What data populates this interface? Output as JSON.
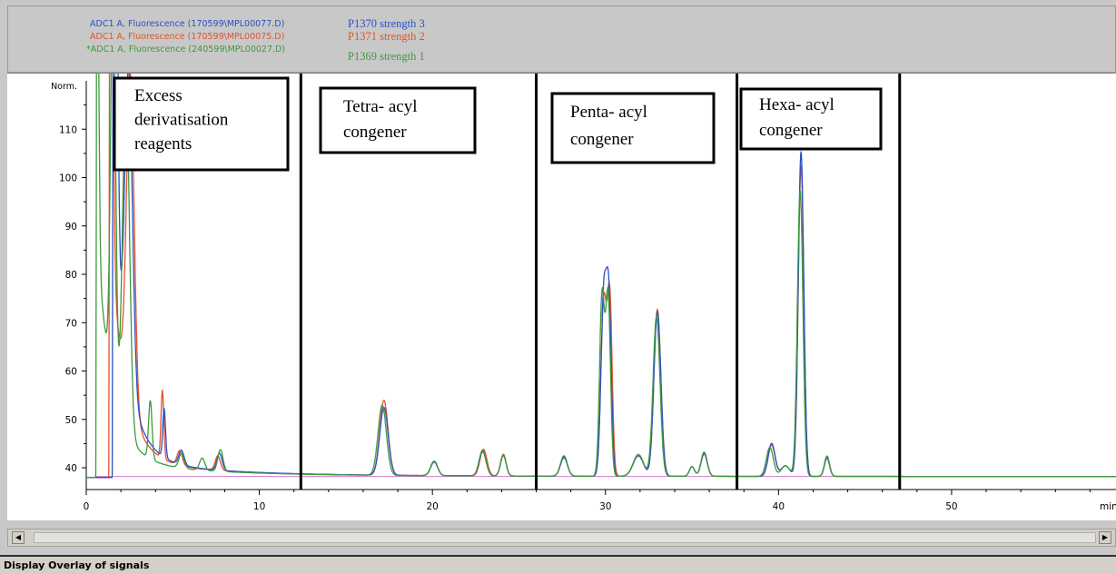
{
  "legend": [
    {
      "file": "ADC1 A, Fluorescence (170599\\MPL00077.D)",
      "name": "P1370 strength 3",
      "color": "#2b4fc4"
    },
    {
      "file": "ADC1 A, Fluorescence (170599\\MPL00075.D)",
      "name": "P1371 strength 2",
      "color": "#e2522c"
    },
    {
      "file": "*ADC1 A, Fluorescence (240599\\MPL00027.D)",
      "name": "P1369 strength 1",
      "color": "#3e9a3c"
    }
  ],
  "status_bar": {
    "text": "Display Overlay of signals"
  },
  "scrollbar": {
    "left_icon": "scroll-left-arrow-icon",
    "right_icon": "scroll-right-arrow-icon"
  },
  "chart_data": {
    "type": "line",
    "ylabel": "Norm.",
    "xunit_label": "min",
    "xlim": [
      0,
      59.5
    ],
    "ylim": [
      35.5,
      120
    ],
    "grid": false,
    "x_ticks": [
      0,
      10,
      20,
      30,
      40,
      50
    ],
    "y_ticks": [
      40,
      50,
      60,
      70,
      80,
      90,
      100,
      110
    ],
    "x_tick_labels": [
      "0",
      "10",
      "20",
      "30",
      "40",
      "50"
    ],
    "y_tick_labels": [
      "40",
      "50",
      "60",
      "70",
      "80",
      "90",
      "100",
      "110"
    ],
    "baseline": 38.2,
    "dividers_x": [
      12.4,
      26.0,
      37.6,
      47.0
    ],
    "regions": [
      {
        "label": "Excess derivatisation reagents",
        "lines": [
          "Excess",
          "derivatisation",
          "reagents"
        ]
      },
      {
        "label": "Tetra- acyl congener",
        "lines": [
          "Tetra- acyl",
          "congener"
        ]
      },
      {
        "label": "Penta- acyl congener",
        "lines": [
          "Penta- acyl",
          "congener"
        ]
      },
      {
        "label": "Hexa- acyl congener",
        "lines": [
          "Hexa- acyl",
          "congener"
        ]
      }
    ],
    "series": [
      {
        "name": "P1370 strength 3",
        "color": "#2b4fc4",
        "start": 1.5,
        "peaks": [
          {
            "x": 1.7,
            "height": 88,
            "width": 0.12
          },
          {
            "x": 2.45,
            "height": 64,
            "width": 0.22
          },
          {
            "x": 4.5,
            "height": 10,
            "width": 0.08
          },
          {
            "x": 5.5,
            "height": 3,
            "width": 0.15
          },
          {
            "x": 7.7,
            "height": 3.5,
            "width": 0.15
          },
          {
            "x": 17.2,
            "height": 14,
            "width": 0.24
          },
          {
            "x": 20.1,
            "height": 2.8,
            "width": 0.2
          },
          {
            "x": 22.9,
            "height": 5,
            "width": 0.2
          },
          {
            "x": 24.1,
            "height": 4.2,
            "width": 0.16
          },
          {
            "x": 27.6,
            "height": 3.8,
            "width": 0.2
          },
          {
            "x": 29.9,
            "height": 37,
            "width": 0.16
          },
          {
            "x": 30.2,
            "height": 34,
            "width": 0.14
          },
          {
            "x": 31.9,
            "height": 4.2,
            "width": 0.3
          },
          {
            "x": 33.0,
            "height": 34,
            "width": 0.2
          },
          {
            "x": 35.0,
            "height": 2,
            "width": 0.15
          },
          {
            "x": 35.7,
            "height": 4.6,
            "width": 0.18
          },
          {
            "x": 39.6,
            "height": 6.8,
            "width": 0.2
          },
          {
            "x": 40.4,
            "height": 2.2,
            "width": 0.25
          },
          {
            "x": 41.3,
            "height": 67,
            "width": 0.16
          },
          {
            "x": 42.8,
            "height": 3.8,
            "width": 0.15
          }
        ]
      },
      {
        "name": "P1371 strength 2",
        "color": "#e2522c",
        "start": 1.3,
        "peaks": [
          {
            "x": 1.4,
            "height": 90,
            "width": 0.13
          },
          {
            "x": 2.55,
            "height": 68,
            "width": 0.22
          },
          {
            "x": 4.4,
            "height": 14,
            "width": 0.08
          },
          {
            "x": 5.4,
            "height": 3,
            "width": 0.15
          },
          {
            "x": 7.6,
            "height": 3,
            "width": 0.15
          },
          {
            "x": 17.2,
            "height": 15.5,
            "width": 0.24
          },
          {
            "x": 20.1,
            "height": 3,
            "width": 0.2
          },
          {
            "x": 22.95,
            "height": 5.5,
            "width": 0.2
          },
          {
            "x": 24.1,
            "height": 4.5,
            "width": 0.16
          },
          {
            "x": 27.6,
            "height": 4,
            "width": 0.2
          },
          {
            "x": 29.9,
            "height": 36,
            "width": 0.16
          },
          {
            "x": 30.25,
            "height": 36,
            "width": 0.14
          },
          {
            "x": 31.9,
            "height": 4.5,
            "width": 0.3
          },
          {
            "x": 33.0,
            "height": 34.5,
            "width": 0.2
          },
          {
            "x": 35.0,
            "height": 2,
            "width": 0.15
          },
          {
            "x": 35.7,
            "height": 4.8,
            "width": 0.18
          },
          {
            "x": 39.6,
            "height": 6.5,
            "width": 0.2
          },
          {
            "x": 40.4,
            "height": 2.2,
            "width": 0.25
          },
          {
            "x": 41.3,
            "height": 64,
            "width": 0.16
          },
          {
            "x": 42.8,
            "height": 3.8,
            "width": 0.15
          }
        ]
      },
      {
        "name": "P1369 strength 1",
        "color": "#3e9a3c",
        "start": 0.55,
        "peaks": [
          {
            "x": 0.6,
            "height": 90,
            "width": 0.1
          },
          {
            "x": 1.55,
            "height": 86,
            "width": 0.14
          },
          {
            "x": 2.3,
            "height": 70,
            "width": 0.2
          },
          {
            "x": 3.7,
            "height": 12,
            "width": 0.1
          },
          {
            "x": 5.5,
            "height": 3,
            "width": 0.15
          },
          {
            "x": 6.7,
            "height": 2.5,
            "width": 0.15
          },
          {
            "x": 7.75,
            "height": 4.5,
            "width": 0.15
          },
          {
            "x": 17.1,
            "height": 14.5,
            "width": 0.24
          },
          {
            "x": 20.1,
            "height": 3,
            "width": 0.2
          },
          {
            "x": 22.9,
            "height": 5.3,
            "width": 0.2
          },
          {
            "x": 24.1,
            "height": 4.3,
            "width": 0.16
          },
          {
            "x": 27.6,
            "height": 4.2,
            "width": 0.2
          },
          {
            "x": 29.8,
            "height": 37,
            "width": 0.14
          },
          {
            "x": 30.15,
            "height": 37,
            "width": 0.14
          },
          {
            "x": 31.9,
            "height": 4.4,
            "width": 0.3
          },
          {
            "x": 32.95,
            "height": 33,
            "width": 0.2
          },
          {
            "x": 35.0,
            "height": 2,
            "width": 0.15
          },
          {
            "x": 35.7,
            "height": 5,
            "width": 0.18
          },
          {
            "x": 39.5,
            "height": 6,
            "width": 0.2
          },
          {
            "x": 40.4,
            "height": 2.2,
            "width": 0.25
          },
          {
            "x": 41.25,
            "height": 59,
            "width": 0.16
          },
          {
            "x": 42.8,
            "height": 4.2,
            "width": 0.15
          }
        ]
      }
    ]
  }
}
